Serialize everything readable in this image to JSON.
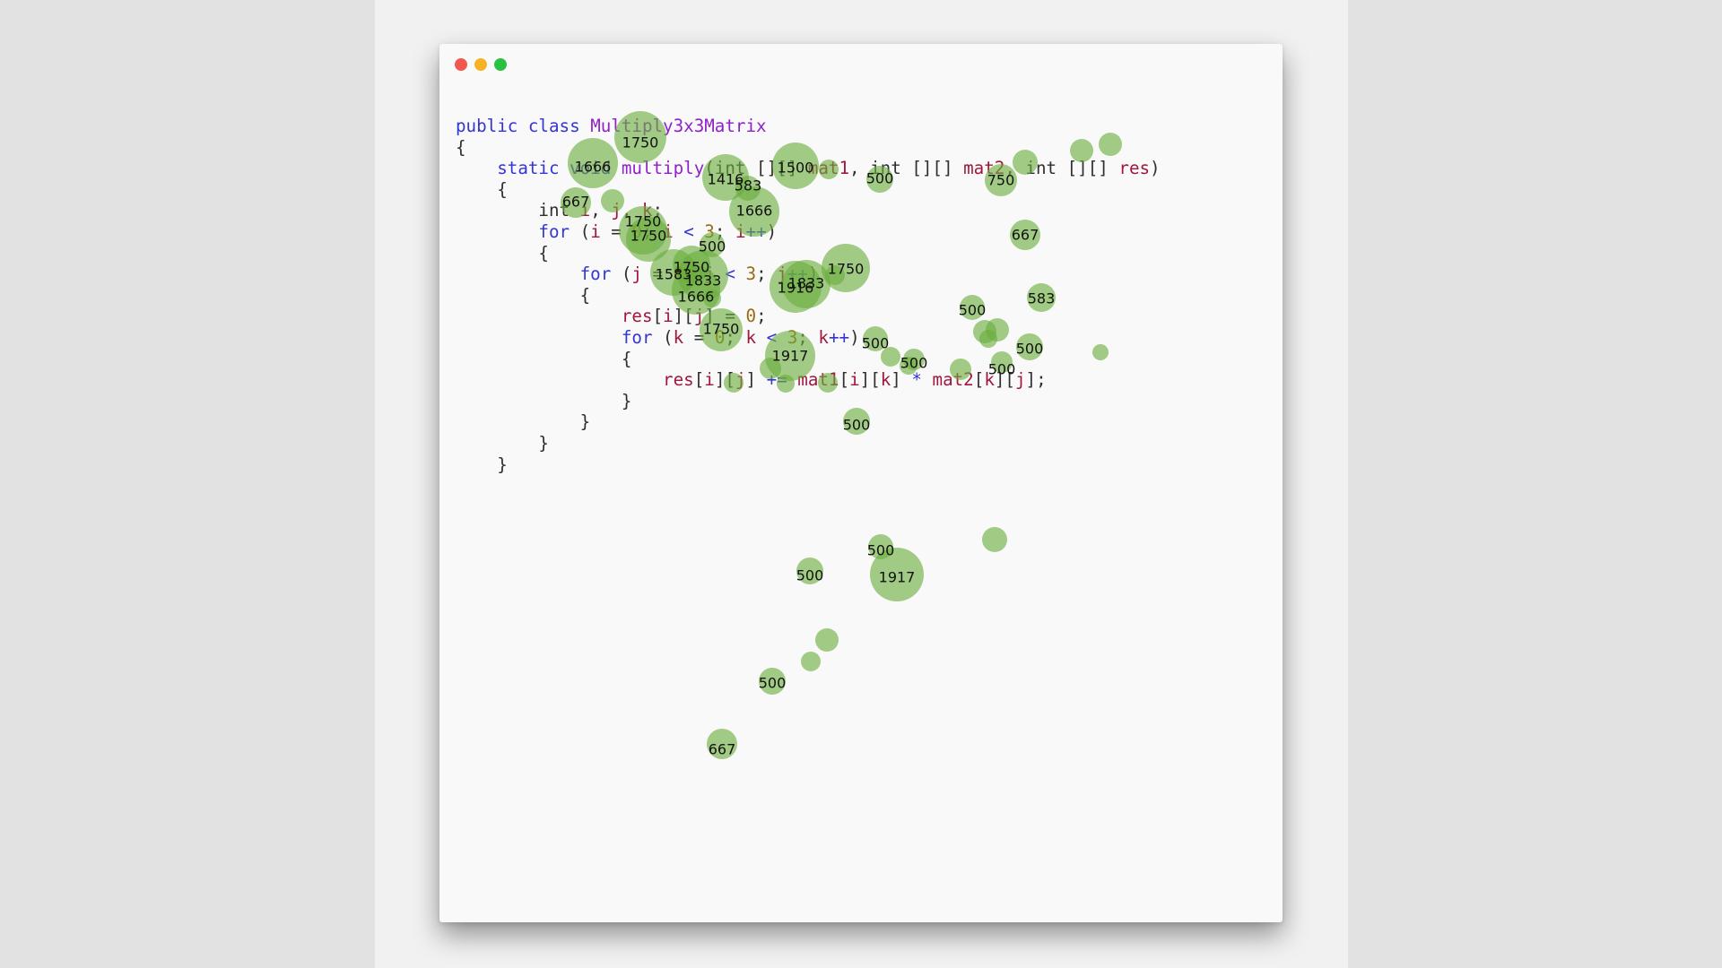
{
  "window": {
    "controls": [
      "close",
      "minimize",
      "maximize"
    ]
  },
  "code_lines": [
    [
      [
        "kw",
        "public class "
      ],
      [
        "cls",
        "Multiply3x3Matrix"
      ]
    ],
    [
      [
        "plain",
        "{"
      ]
    ],
    [
      [
        "plain",
        "    "
      ],
      [
        "kw",
        "static void "
      ],
      [
        "fn",
        "multiply"
      ],
      [
        "plain",
        "(int [][] "
      ],
      [
        "var",
        "mat1"
      ],
      [
        "plain",
        ", int [][] "
      ],
      [
        "var",
        "mat2"
      ],
      [
        "plain",
        ", int [][] "
      ],
      [
        "var",
        "res"
      ],
      [
        "plain",
        ")"
      ]
    ],
    [
      [
        "plain",
        "    {"
      ]
    ],
    [
      [
        "plain",
        "        int "
      ],
      [
        "var",
        "i"
      ],
      [
        "plain",
        ", "
      ],
      [
        "var",
        "j"
      ],
      [
        "plain",
        ", "
      ],
      [
        "var",
        "k"
      ],
      [
        "plain",
        ";"
      ]
    ],
    [
      [
        "plain",
        "        "
      ],
      [
        "kw",
        "for"
      ],
      [
        "plain",
        " ("
      ],
      [
        "var",
        "i"
      ],
      [
        "plain",
        " = "
      ],
      [
        "num",
        "0"
      ],
      [
        "plain",
        "; "
      ],
      [
        "var",
        "i"
      ],
      [
        "kw",
        " < "
      ],
      [
        "num",
        "3"
      ],
      [
        "plain",
        "; "
      ],
      [
        "var",
        "i"
      ],
      [
        "kw",
        "++"
      ],
      [
        "plain",
        ")"
      ]
    ],
    [
      [
        "plain",
        "        {"
      ]
    ],
    [
      [
        "plain",
        "            "
      ],
      [
        "kw",
        "for"
      ],
      [
        "plain",
        " ("
      ],
      [
        "var",
        "j"
      ],
      [
        "plain",
        " = "
      ],
      [
        "num",
        "0"
      ],
      [
        "plain",
        "; "
      ],
      [
        "var",
        "j"
      ],
      [
        "kw",
        " < "
      ],
      [
        "num",
        "3"
      ],
      [
        "plain",
        "; "
      ],
      [
        "var",
        "j"
      ],
      [
        "kw",
        "++"
      ],
      [
        "plain",
        ")"
      ]
    ],
    [
      [
        "plain",
        "            {"
      ]
    ],
    [
      [
        "plain",
        "                "
      ],
      [
        "var",
        "res"
      ],
      [
        "plain",
        "["
      ],
      [
        "var",
        "i"
      ],
      [
        "plain",
        "]["
      ],
      [
        "var",
        "j"
      ],
      [
        "plain",
        "] = "
      ],
      [
        "num",
        "0"
      ],
      [
        "plain",
        ";"
      ]
    ],
    [
      [
        "plain",
        "                "
      ],
      [
        "kw",
        "for"
      ],
      [
        "plain",
        " ("
      ],
      [
        "var",
        "k"
      ],
      [
        "plain",
        " = "
      ],
      [
        "num",
        "0"
      ],
      [
        "plain",
        "; "
      ],
      [
        "var",
        "k"
      ],
      [
        "kw",
        " < "
      ],
      [
        "num",
        "3"
      ],
      [
        "plain",
        "; "
      ],
      [
        "var",
        "k"
      ],
      [
        "kw",
        "++"
      ],
      [
        "plain",
        ")"
      ]
    ],
    [
      [
        "plain",
        "                {"
      ]
    ],
    [
      [
        "plain",
        "                    "
      ],
      [
        "var",
        "res"
      ],
      [
        "plain",
        "["
      ],
      [
        "var",
        "i"
      ],
      [
        "plain",
        "]["
      ],
      [
        "var",
        "j"
      ],
      [
        "plain",
        "] "
      ],
      [
        "kw",
        "+="
      ],
      [
        "plain",
        " "
      ],
      [
        "var",
        "mat1"
      ],
      [
        "plain",
        "["
      ],
      [
        "var",
        "i"
      ],
      [
        "plain",
        "]["
      ],
      [
        "var",
        "k"
      ],
      [
        "plain",
        "] "
      ],
      [
        "kw",
        "*"
      ],
      [
        "plain",
        " "
      ],
      [
        "var",
        "mat2"
      ],
      [
        "plain",
        "["
      ],
      [
        "var",
        "k"
      ],
      [
        "plain",
        "]["
      ],
      [
        "var",
        "j"
      ],
      [
        "plain",
        "];"
      ]
    ],
    [
      [
        "plain",
        "                }"
      ]
    ],
    [
      [
        "plain",
        "            }"
      ]
    ],
    [
      [
        "plain",
        "        }"
      ]
    ],
    [
      [
        "plain",
        "    }"
      ]
    ]
  ],
  "bubbles": [
    {
      "value": 1750,
      "label": "1750"
    },
    {
      "value": 1666,
      "label": "1666"
    },
    {
      "value": 1416,
      "label": "1416"
    },
    {
      "value": 583,
      "label": "583"
    },
    {
      "value": 1500,
      "label": "1500"
    },
    {
      "value": 500,
      "label": "500"
    },
    {
      "value": 750,
      "label": "750"
    },
    {
      "value": 667,
      "label": "667"
    },
    {
      "value": 1666,
      "label": "1666"
    },
    {
      "value": 1750,
      "label": "1750"
    },
    {
      "value": 1750,
      "label": "1750"
    },
    {
      "value": 500,
      "label": "500"
    },
    {
      "value": 667,
      "label": "667"
    },
    {
      "value": 1750,
      "label": "1750"
    },
    {
      "value": 1583,
      "label": "1583"
    },
    {
      "value": 1833,
      "label": "1833"
    },
    {
      "value": 1916,
      "label": "1916"
    },
    {
      "value": 1833,
      "label": "1833"
    },
    {
      "value": 1750,
      "label": "1750"
    },
    {
      "value": 1666,
      "label": "1666"
    },
    {
      "value": 500,
      "label": "500"
    },
    {
      "value": 583,
      "label": "583"
    },
    {
      "value": 1750,
      "label": "1750"
    },
    {
      "value": 500,
      "label": "500"
    },
    {
      "value": 500,
      "label": "500"
    },
    {
      "value": 1917,
      "label": "1917"
    },
    {
      "value": 500,
      "label": "500"
    },
    {
      "value": 500,
      "label": "500"
    },
    {
      "value": 500,
      "label": "500"
    },
    {
      "value": 500,
      "label": "500"
    },
    {
      "value": 500,
      "label": "500"
    },
    {
      "value": 1917,
      "label": "1917"
    },
    {
      "value": 500,
      "label": "500"
    },
    {
      "value": 667,
      "label": "667"
    },
    {
      "value": 0,
      "label": ""
    },
    {
      "value": 0,
      "label": ""
    },
    {
      "value": 0,
      "label": ""
    },
    {
      "value": 0,
      "label": ""
    },
    {
      "value": 0,
      "label": ""
    },
    {
      "value": 0,
      "label": ""
    },
    {
      "value": 0,
      "label": ""
    },
    {
      "value": 0,
      "label": ""
    },
    {
      "value": 0,
      "label": ""
    },
    {
      "value": 0,
      "label": ""
    },
    {
      "value": 0,
      "label": ""
    },
    {
      "value": 0,
      "label": ""
    },
    {
      "value": 0,
      "label": ""
    },
    {
      "value": 0,
      "label": ""
    },
    {
      "value": 0,
      "label": ""
    },
    {
      "value": 0,
      "label": ""
    },
    {
      "value": 0,
      "label": ""
    },
    {
      "value": 0,
      "label": ""
    },
    {
      "value": 0,
      "label": ""
    },
    {
      "value": 0,
      "label": ""
    },
    {
      "value": 0,
      "label": ""
    }
  ],
  "colors": {
    "bubble": "#6aac3c",
    "close": "#f25650",
    "minimize": "#f5b225",
    "maximize": "#2bc140"
  }
}
